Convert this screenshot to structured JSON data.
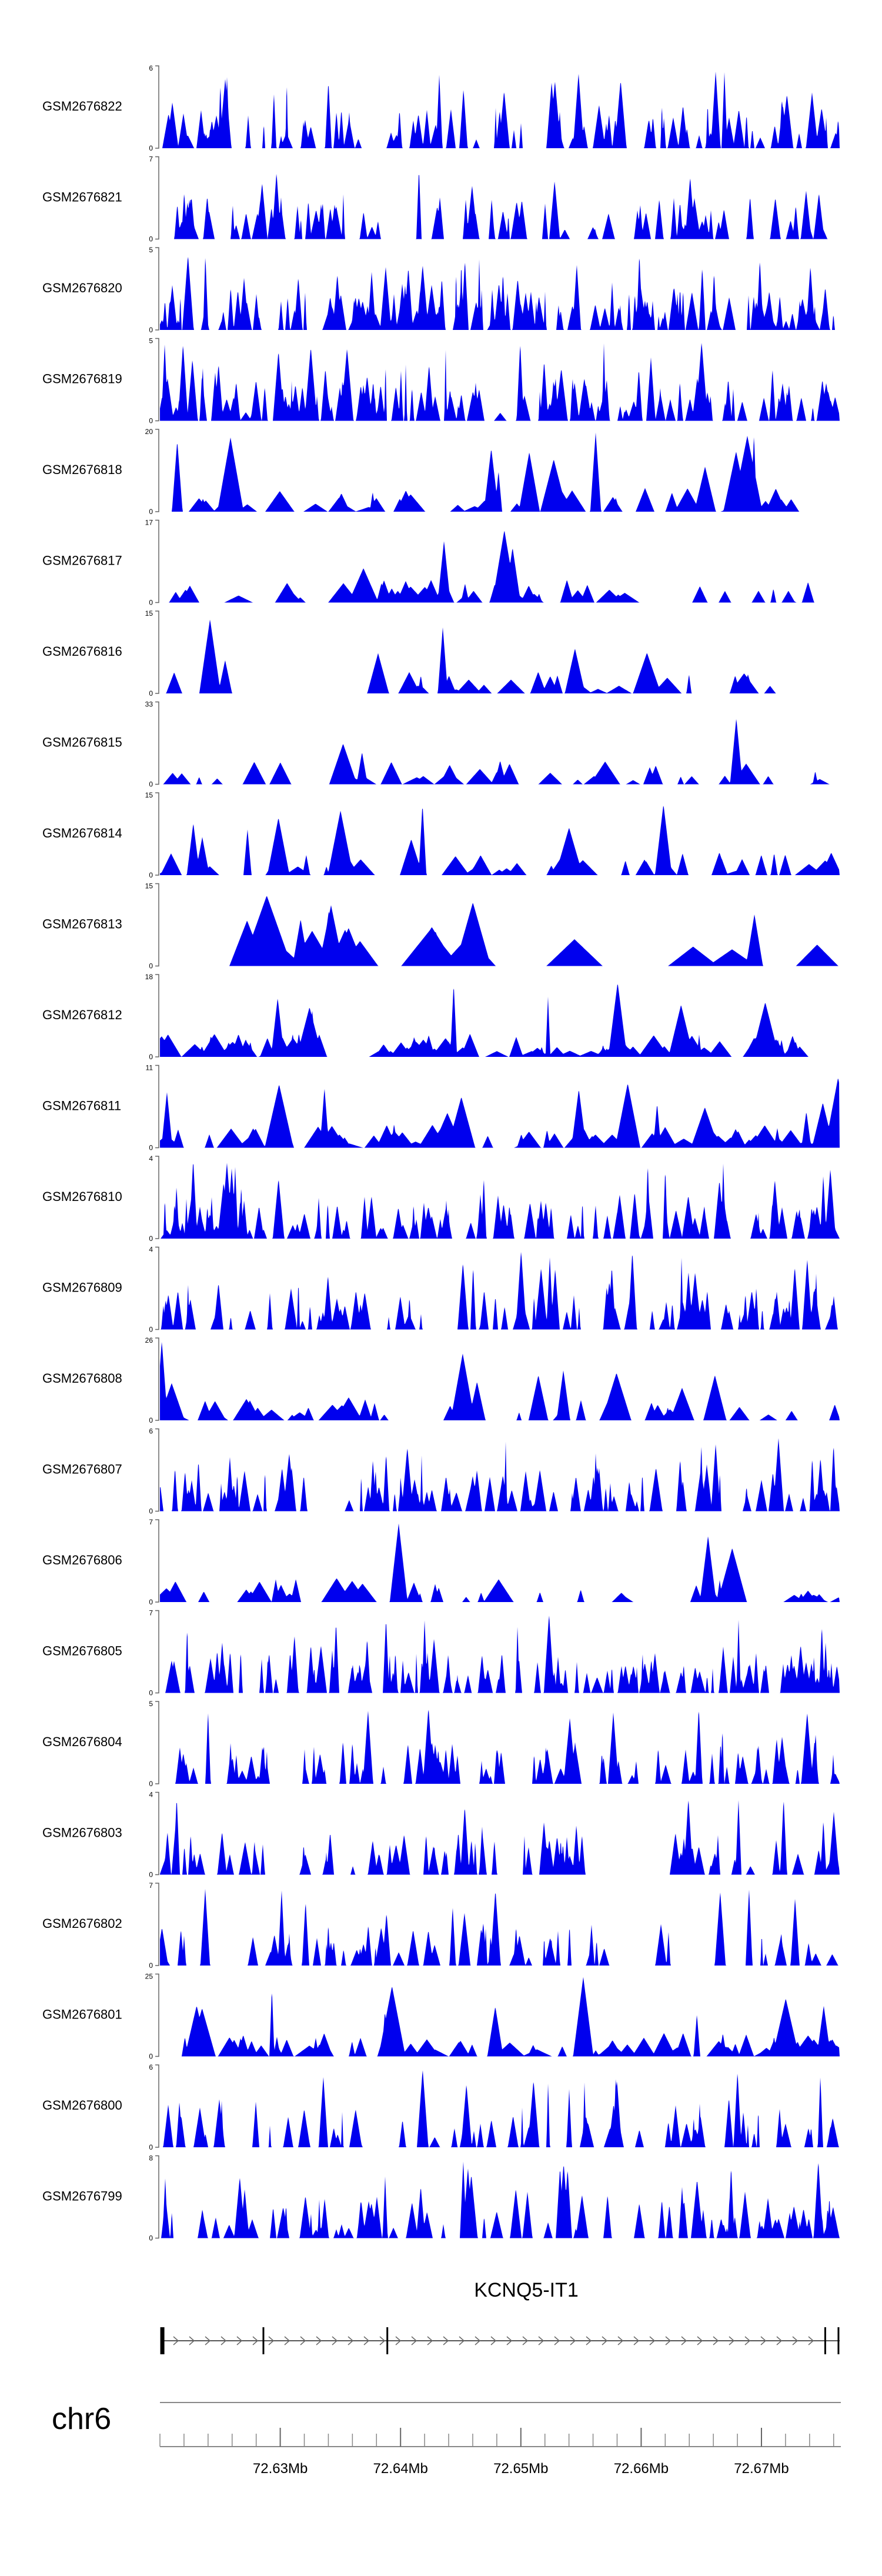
{
  "chart_data": {
    "type": "area",
    "title": "",
    "track_color": "#0000ee",
    "genomic_range": {
      "start_mb": 72.62,
      "end_mb": 72.6765
    },
    "tracks": [
      {
        "name": "GSM2676822",
        "ymax": 6,
        "seed": 11,
        "density": 100,
        "style": "dense"
      },
      {
        "name": "GSM2676821",
        "ymax": 7,
        "seed": 12,
        "density": 85,
        "style": "dense"
      },
      {
        "name": "GSM2676820",
        "ymax": 5,
        "seed": 13,
        "density": 160,
        "style": "very-dense"
      },
      {
        "name": "GSM2676819",
        "ymax": 5,
        "seed": 14,
        "density": 150,
        "style": "very-dense"
      },
      {
        "name": "GSM2676818",
        "ymax": 20,
        "seed": 15,
        "density": 55,
        "style": "sparse"
      },
      {
        "name": "GSM2676817",
        "ymax": 17,
        "seed": 16,
        "density": 45,
        "style": "sparse"
      },
      {
        "name": "GSM2676816",
        "ymax": 15,
        "seed": 17,
        "density": 30,
        "style": "sparse"
      },
      {
        "name": "GSM2676815",
        "ymax": 33,
        "seed": 18,
        "density": 40,
        "style": "sparse"
      },
      {
        "name": "GSM2676814",
        "ymax": 15,
        "seed": 19,
        "density": 50,
        "style": "sparse"
      },
      {
        "name": "GSM2676813",
        "ymax": 15,
        "seed": 20,
        "density": 22,
        "style": "very-sparse"
      },
      {
        "name": "GSM2676812",
        "ymax": 18,
        "seed": 21,
        "density": 90,
        "style": "sparse"
      },
      {
        "name": "GSM2676811",
        "ymax": 11,
        "seed": 22,
        "density": 80,
        "style": "sparse"
      },
      {
        "name": "GSM2676810",
        "ymax": 4,
        "seed": 23,
        "density": 120,
        "style": "dense"
      },
      {
        "name": "GSM2676809",
        "ymax": 4,
        "seed": 24,
        "density": 100,
        "style": "dense"
      },
      {
        "name": "GSM2676808",
        "ymax": 26,
        "seed": 25,
        "density": 50,
        "style": "sparse"
      },
      {
        "name": "GSM2676807",
        "ymax": 6,
        "seed": 26,
        "density": 110,
        "style": "dense"
      },
      {
        "name": "GSM2676806",
        "ymax": 7,
        "seed": 27,
        "density": 40,
        "style": "sparse"
      },
      {
        "name": "GSM2676805",
        "ymax": 7,
        "seed": 28,
        "density": 140,
        "style": "very-dense"
      },
      {
        "name": "GSM2676804",
        "ymax": 5,
        "seed": 29,
        "density": 90,
        "style": "dense"
      },
      {
        "name": "GSM2676803",
        "ymax": 4,
        "seed": 30,
        "density": 80,
        "style": "dense"
      },
      {
        "name": "GSM2676802",
        "ymax": 7,
        "seed": 31,
        "density": 70,
        "style": "dense"
      },
      {
        "name": "GSM2676801",
        "ymax": 25,
        "seed": 32,
        "density": 80,
        "style": "sparse"
      },
      {
        "name": "GSM2676800",
        "ymax": 6,
        "seed": 33,
        "density": 70,
        "style": "dense"
      },
      {
        "name": "GSM2676799",
        "ymax": 8,
        "seed": 34,
        "density": 90,
        "style": "dense"
      }
    ],
    "y_axis_min_label": "0",
    "gene": {
      "name": "KCNQ5-IT1",
      "strand": "+",
      "exons_mb": [
        72.6202,
        72.6286,
        72.6389,
        72.6753,
        72.6764
      ]
    },
    "chromosome": {
      "label": "chr6",
      "major_ticks": [
        {
          "mb": 72.63,
          "label": "72.63Mb"
        },
        {
          "mb": 72.64,
          "label": "72.64Mb"
        },
        {
          "mb": 72.65,
          "label": "72.65Mb"
        },
        {
          "mb": 72.66,
          "label": "72.66Mb"
        },
        {
          "mb": 72.67,
          "label": "72.67Mb"
        }
      ],
      "minor_tick_step_mb": 0.002
    }
  }
}
